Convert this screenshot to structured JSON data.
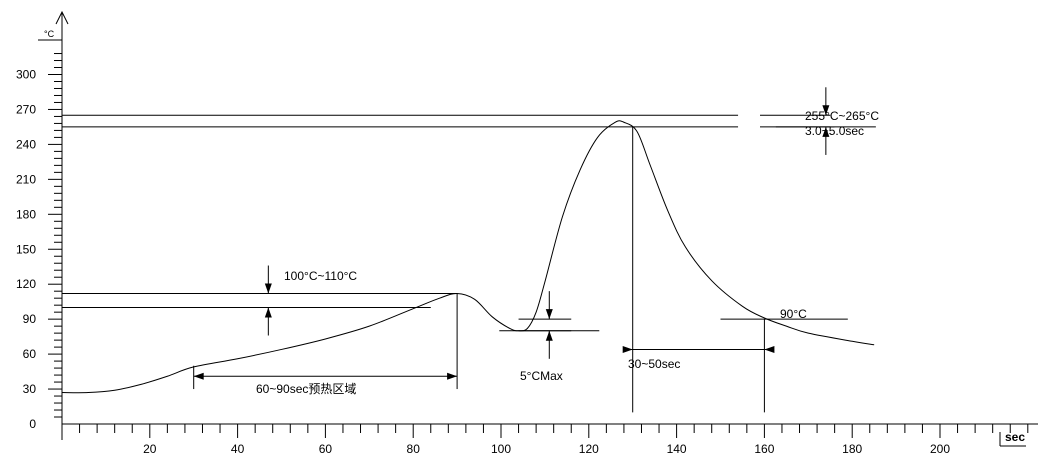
{
  "chart_data": {
    "type": "line",
    "title": "",
    "xlabel": "sec",
    "ylabel": "°C",
    "xlim": [
      0,
      220
    ],
    "ylim": [
      0,
      320
    ],
    "x_ticks": [
      20,
      40,
      60,
      80,
      100,
      120,
      140,
      160,
      180,
      200
    ],
    "y_ticks": [
      0,
      30,
      60,
      90,
      120,
      150,
      180,
      210,
      240,
      270,
      300
    ],
    "x_tick_step_minor": 4,
    "y_tick_step_minor": 6,
    "grid": false,
    "legend": "none",
    "series": [
      {
        "x": [
          0,
          6,
          12,
          18,
          24,
          30,
          40,
          50,
          60,
          70,
          80,
          86,
          90,
          94,
          98,
          102,
          104,
          106,
          108,
          110,
          114,
          118,
          122,
          126,
          128,
          131,
          134,
          138,
          142,
          148,
          155,
          160,
          165,
          170,
          180,
          185
        ],
        "y": [
          27,
          27,
          29,
          34,
          41,
          49,
          56,
          64,
          73,
          84,
          99,
          108,
          112,
          107,
          92,
          82,
          80,
          82,
          96,
          122,
          178,
          218,
          246,
          259,
          259,
          251,
          222,
          183,
          152,
          123,
          101,
          91,
          84,
          78,
          71,
          68
        ]
      }
    ],
    "reference_lines": [
      {
        "y": 265,
        "x_from": 0,
        "x_to": 154
      },
      {
        "y": 255,
        "x_from": 0,
        "x_to": 154
      },
      {
        "y": 265,
        "x_from": 159,
        "x_to": 175
      },
      {
        "y": 255,
        "x_from": 159,
        "x_to": 175
      },
      {
        "y": 112,
        "x_from": 0,
        "x_to": 90
      },
      {
        "y": 100,
        "x_from": 0,
        "x_to": 84
      },
      {
        "y": 90,
        "x_from": 104,
        "x_to": 116
      },
      {
        "y": 80,
        "x_from": 104,
        "x_to": 116
      },
      {
        "y": 90,
        "x_from": 150,
        "x_to": 179
      }
    ],
    "vertical_lines": [
      {
        "x": 30,
        "y_from": 30,
        "y_to": 50
      },
      {
        "x": 90,
        "y_from": 30,
        "y_to": 112
      },
      {
        "x": 130,
        "y_from": 10,
        "y_to": 255
      },
      {
        "x": 160,
        "y_from": 10,
        "y_to": 90
      }
    ],
    "dimension_arrows": [
      {
        "id": "preheat",
        "axis": "x",
        "from": 30,
        "to": 90,
        "at": 41
      },
      {
        "id": "reflow",
        "axis": "x",
        "from": 130,
        "to": 160,
        "at": 64
      }
    ],
    "callout_arrows": [
      {
        "id": "peak",
        "x": 174,
        "y_hi": 265,
        "y_lo": 255
      },
      {
        "id": "soak",
        "x": 47,
        "y_hi": 112,
        "y_lo": 100
      },
      {
        "id": "dip",
        "x": 111,
        "y_hi": 90,
        "y_lo": 80
      }
    ],
    "annotations": {
      "peak_temp": "255°C~265°C",
      "peak_time": "3.0~5.0sec",
      "soak_temp": "100°C~110°C",
      "preheat": "60~90sec预热区域",
      "dip": "5°CMax",
      "reflow": "30~50sec",
      "cool": "90°C"
    }
  }
}
